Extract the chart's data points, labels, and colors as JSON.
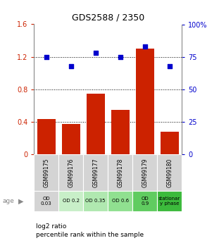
{
  "title": "GDS2588 / 2350",
  "categories": [
    "GSM99175",
    "GSM99176",
    "GSM99177",
    "GSM99178",
    "GSM99179",
    "GSM99180"
  ],
  "bar_values": [
    0.43,
    0.37,
    0.75,
    0.55,
    1.3,
    0.28
  ],
  "scatter_percentiles": [
    75,
    68,
    78,
    75,
    83,
    68
  ],
  "bar_color": "#cc2200",
  "scatter_color": "#0000cc",
  "ylim_left": [
    0,
    1.6
  ],
  "ylim_right": [
    0,
    100
  ],
  "yticks_left": [
    0,
    0.4,
    0.8,
    1.2,
    1.6
  ],
  "ytick_labels_left": [
    "0",
    "0.4",
    "0.8",
    "1.2",
    "1.6"
  ],
  "yticks_right": [
    0,
    25,
    50,
    75,
    100
  ],
  "ytick_labels_right": [
    "0",
    "25",
    "50",
    "75",
    "100%"
  ],
  "hlines": [
    0.4,
    0.8,
    1.2
  ],
  "age_labels": [
    "OD\n0.03",
    "OD 0.2",
    "OD 0.35",
    "OD 0.6",
    "OD\n0.9",
    "stationar\ny phase"
  ],
  "age_bg_colors": [
    "#d4d4d4",
    "#c8efc8",
    "#b0e8b0",
    "#90e090",
    "#60cc60",
    "#3cba3c"
  ],
  "sample_bg_color": "#d4d4d4",
  "label_log2": "log2 ratio",
  "label_pct": "percentile rank within the sample",
  "age_label": "age",
  "legend_square_size": 8
}
